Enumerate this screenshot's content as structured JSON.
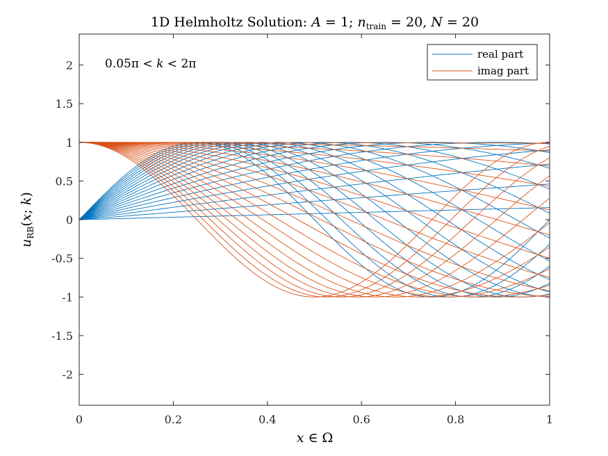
{
  "chart_data": {
    "type": "line",
    "title": "1D Helmholtz Solution: A = 1; n_train = 20, N = 20",
    "title_parts": {
      "prefix": "1D Helmholtz Solution: ",
      "a_var": "A",
      "a_rest": " = 1; ",
      "n_var": "n",
      "n_sub": "train",
      "n_rest": " = 20, ",
      "N_var": "N",
      "N_rest": " = 20"
    },
    "xlabel": "x ∈ Ω",
    "xlabel_parts": {
      "var": "x",
      "rest": " ∈ Ω"
    },
    "ylabel": "u_RB(x; k)",
    "ylabel_parts": {
      "var": "u",
      "sub": "RB",
      "open": "(",
      "x": "x",
      "sep": "; ",
      "k": "k",
      "close": ")"
    },
    "annotation": "0.05π < k < 2π",
    "annotation_parts": {
      "lo": "0.05π < ",
      "k": "k",
      "hi": " < 2π"
    },
    "xlim": [
      0,
      1
    ],
    "ylim": [
      -2.4,
      2.4
    ],
    "xticks": [
      0,
      0.2,
      0.4,
      0.6,
      0.8,
      1
    ],
    "xtick_labels": [
      "0",
      "0.2",
      "0.4",
      "0.6",
      "0.8",
      "1"
    ],
    "yticks": [
      2,
      1.5,
      1,
      0.5,
      0,
      -0.5,
      -1,
      -1.5,
      -2
    ],
    "ytick_labels": [
      "2",
      "1.5",
      "1",
      "0.5",
      "0",
      "-0.5",
      "-1",
      "-1.5",
      "-2"
    ],
    "grid": false,
    "legend_position": "top-right",
    "k_range": [
      0.05,
      2
    ],
    "n_curves": 20,
    "formula_real": "sin(k x)",
    "formula_imag": "cos(k x)",
    "series": [
      {
        "name": "real part",
        "color": "#0072BD"
      },
      {
        "name": "imag part",
        "color": "#D95319"
      }
    ]
  }
}
